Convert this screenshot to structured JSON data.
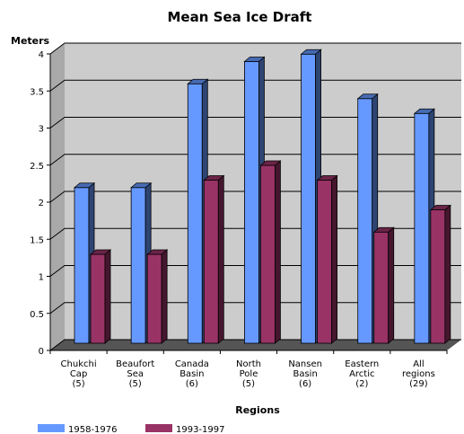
{
  "chart_data": {
    "type": "bar",
    "title": "Mean Sea Ice Draft",
    "ylabel": "Meters",
    "xlabel": "Regions",
    "ylim": [
      0,
      4
    ],
    "yticks": [
      "0",
      "0.5",
      "1",
      "1.5",
      "2",
      "2.5",
      "3",
      "3.5",
      "4"
    ],
    "categories": [
      [
        "Chukchi",
        "Cap",
        "(5)"
      ],
      [
        "Beaufort",
        "Sea",
        "(5)"
      ],
      [
        "Canada",
        "Basin",
        "(6)"
      ],
      [
        "North",
        "Pole",
        "(5)"
      ],
      [
        "Nansen",
        "Basin",
        "(6)"
      ],
      [
        "Eastern",
        "Arctic",
        "(2)"
      ],
      [
        "All",
        "regions",
        "(29)"
      ]
    ],
    "series": [
      {
        "name": "1958-1976",
        "color": "#6699ff",
        "values": [
          2.1,
          2.1,
          3.5,
          3.8,
          3.9,
          3.3,
          3.1
        ]
      },
      {
        "name": "1993-1997",
        "color": "#993366",
        "values": [
          1.2,
          1.2,
          2.2,
          2.4,
          2.2,
          1.5,
          1.8
        ]
      }
    ],
    "grid": true,
    "legend_position": "bottom-left"
  }
}
